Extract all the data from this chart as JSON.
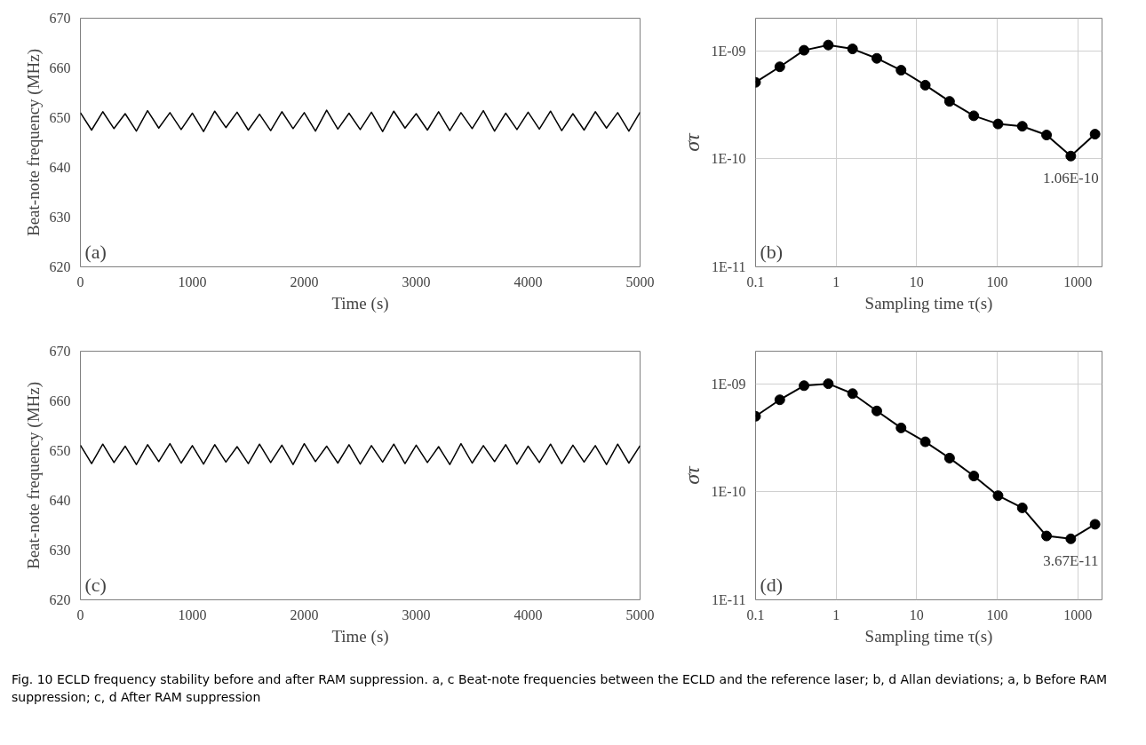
{
  "chart_data": [
    {
      "type": "line",
      "xlabel": "Time (s)",
      "ylabel": "Beat-note frequency (MHz)",
      "xlim": [
        0,
        5000
      ],
      "ylim": [
        620,
        670
      ],
      "xticks": [
        0,
        1000,
        2000,
        3000,
        4000,
        5000
      ],
      "yticks": [
        620,
        630,
        640,
        650,
        660,
        670
      ],
      "grid": false,
      "annotations": [
        "(a)"
      ],
      "series": [
        {
          "color": "#000000",
          "x": [
            0,
            100,
            200,
            300,
            400,
            500,
            600,
            700,
            800,
            900,
            1000,
            1100,
            1200,
            1300,
            1400,
            1500,
            1600,
            1700,
            1800,
            1900,
            2000,
            2100,
            2200,
            2300,
            2400,
            2500,
            2600,
            2700,
            2800,
            2900,
            3000,
            3100,
            3200,
            3300,
            3400,
            3500,
            3600,
            3700,
            3800,
            3900,
            4000,
            4100,
            4200,
            4300,
            4400,
            4500,
            4600,
            4700,
            4800,
            4900,
            5000
          ],
          "values": [
            651,
            647.5,
            651.2,
            647.8,
            650.8,
            647.3,
            651.4,
            647.9,
            651,
            647.6,
            650.9,
            647.2,
            651.3,
            648,
            651.1,
            647.5,
            650.7,
            647.4,
            651.2,
            647.8,
            651,
            647.3,
            651.5,
            647.7,
            650.9,
            647.6,
            651.1,
            647.2,
            651.3,
            647.9,
            650.8,
            647.5,
            651.2,
            647.4,
            651,
            647.8,
            651.4,
            647.3,
            650.9,
            647.6,
            651.1,
            647.7,
            651.3,
            647.4,
            650.8,
            647.5,
            651.2,
            647.9,
            651,
            647.3,
            651.1
          ]
        }
      ]
    },
    {
      "type": "line",
      "xlabel": "Sampling time τ(s)",
      "ylabel": "στ",
      "log": "xy",
      "xlim": [
        0.1,
        2000
      ],
      "ylim": [
        1e-11,
        2e-09
      ],
      "xticks": [
        0.1,
        1,
        10,
        100,
        1000
      ],
      "yticks": [
        {
          "value": 1e-11,
          "label": "1E-11"
        },
        {
          "value": 1e-10,
          "label": "1E-10"
        },
        {
          "value": 1e-09,
          "label": "1E-09"
        }
      ],
      "grid": true,
      "marker": "circle",
      "annotations": [
        "(b)",
        {
          "text": "1.06E-10",
          "x": 819.2,
          "y": 1.06e-10
        }
      ],
      "series": [
        {
          "color": "#000000",
          "x": [
            0.1,
            0.2,
            0.4,
            0.8,
            1.6,
            3.2,
            6.4,
            12.8,
            25.6,
            51.2,
            102.4,
            204.8,
            409.6,
            819.2,
            1638.4
          ],
          "values": [
            5.1e-10,
            7.1e-10,
            1.01e-09,
            1.13e-09,
            1.04e-09,
            8.5e-10,
            6.6e-10,
            4.8e-10,
            3.4e-10,
            2.5e-10,
            2.1e-10,
            2e-10,
            1.66e-10,
            1.06e-10,
            1.69e-10
          ]
        }
      ]
    },
    {
      "type": "line",
      "xlabel": "Time (s)",
      "ylabel": "Beat-note frequency (MHz)",
      "xlim": [
        0,
        5000
      ],
      "ylim": [
        620,
        670
      ],
      "xticks": [
        0,
        1000,
        2000,
        3000,
        4000,
        5000
      ],
      "yticks": [
        620,
        630,
        640,
        650,
        660,
        670
      ],
      "grid": false,
      "annotations": [
        "(c)"
      ],
      "series": [
        {
          "color": "#000000",
          "x": [
            0,
            100,
            200,
            300,
            400,
            500,
            600,
            700,
            800,
            900,
            1000,
            1100,
            1200,
            1300,
            1400,
            1500,
            1600,
            1700,
            1800,
            1900,
            2000,
            2100,
            2200,
            2300,
            2400,
            2500,
            2600,
            2700,
            2800,
            2900,
            3000,
            3100,
            3200,
            3300,
            3400,
            3500,
            3600,
            3700,
            3800,
            3900,
            4000,
            4100,
            4200,
            4300,
            4400,
            4500,
            4600,
            4700,
            4800,
            4900,
            5000
          ],
          "values": [
            651.1,
            647.4,
            651.3,
            647.6,
            650.9,
            647.2,
            651.2,
            647.8,
            651.4,
            647.5,
            651,
            647.3,
            651.2,
            647.7,
            650.8,
            647.4,
            651.3,
            647.6,
            651.1,
            647.2,
            651.4,
            647.8,
            650.9,
            647.5,
            651.2,
            647.3,
            651,
            647.7,
            651.3,
            647.4,
            651.1,
            647.6,
            650.8,
            647.2,
            651.4,
            647.5,
            651,
            647.8,
            651.2,
            647.3,
            650.9,
            647.6,
            651.3,
            647.4,
            651.1,
            647.7,
            651,
            647.2,
            651.3,
            647.5,
            651
          ]
        }
      ]
    },
    {
      "type": "line",
      "xlabel": "Sampling time τ(s)",
      "ylabel": "στ",
      "log": "xy",
      "xlim": [
        0.1,
        2000
      ],
      "ylim": [
        1e-11,
        2e-09
      ],
      "xticks": [
        0.1,
        1,
        10,
        100,
        1000
      ],
      "yticks": [
        {
          "value": 1e-11,
          "label": "1E-11"
        },
        {
          "value": 1e-10,
          "label": "1E-10"
        },
        {
          "value": 1e-09,
          "label": "1E-09"
        }
      ],
      "grid": true,
      "marker": "circle",
      "annotations": [
        "(d)",
        {
          "text": "3.67E-11",
          "x": 819.2,
          "y": 3.67e-11
        },
        "Fig. 10 ECLD frequency stability before and after RAM suppression. a, c Beat-note frequencies between the ECLD and the reference laser; b, d Allan deviations; a, b Before RAM suppression; c, d After RAM suppression"
      ],
      "series": [
        {
          "color": "#000000",
          "x": [
            0.1,
            0.2,
            0.4,
            0.8,
            1.6,
            3.2,
            6.4,
            12.8,
            25.6,
            51.2,
            102.4,
            204.8,
            409.6,
            819.2,
            1638.4
          ],
          "values": [
            5e-10,
            7.1e-10,
            9.6e-10,
            1e-09,
            8.1e-10,
            5.6e-10,
            3.9e-10,
            2.9e-10,
            2.05e-10,
            1.4e-10,
            9.2e-11,
            7.1e-11,
            3.9e-11,
            3.67e-11,
            5e-11
          ]
        }
      ]
    }
  ]
}
